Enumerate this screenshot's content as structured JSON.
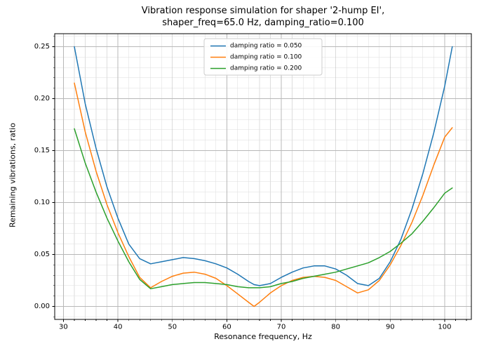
{
  "figure": {
    "title_line1": "Vibration response simulation for shaper '2-hump EI',",
    "title_line2": "shaper_freq=65.0 Hz, damping_ratio=0.100"
  },
  "chart_data": {
    "type": "line",
    "title": "Vibration response simulation for shaper '2-hump EI',\nshaper_freq=65.0 Hz, damping_ratio=0.100",
    "xlabel": "Resonance frequency, Hz",
    "ylabel": "Remaining vibrations, ratio",
    "xlim": [
      28.4,
      104.9
    ],
    "ylim": [
      -0.0125,
      0.2625
    ],
    "xticks": [
      30,
      40,
      50,
      60,
      70,
      80,
      90,
      100
    ],
    "xtick_labels": [
      "30",
      "40",
      "50",
      "60",
      "70",
      "80",
      "90",
      "100"
    ],
    "yticks": [
      0.0,
      0.05,
      0.1,
      0.15,
      0.2,
      0.25
    ],
    "ytick_labels": [
      "0.00",
      "0.05",
      "0.10",
      "0.15",
      "0.20",
      "0.25"
    ],
    "grid": "major-and-minor",
    "minor_x_step": 2,
    "minor_y_step": 0.01,
    "legend_position": "upper center",
    "x": [
      32,
      34,
      36,
      38,
      40,
      42,
      44,
      46,
      48,
      50,
      52,
      54,
      56,
      58,
      60,
      62,
      64,
      65,
      66,
      68,
      70,
      72,
      74,
      76,
      78,
      80,
      82,
      84,
      86,
      88,
      90,
      92,
      94,
      96,
      98,
      100,
      101.4
    ],
    "series": [
      {
        "name": "damping ratio = 0.050",
        "color": "#1f77b4",
        "values": [
          0.25,
          0.195,
          0.152,
          0.115,
          0.085,
          0.06,
          0.046,
          0.041,
          0.043,
          0.045,
          0.047,
          0.046,
          0.044,
          0.041,
          0.037,
          0.031,
          0.024,
          0.021,
          0.02,
          0.022,
          0.028,
          0.033,
          0.037,
          0.039,
          0.039,
          0.036,
          0.03,
          0.022,
          0.02,
          0.027,
          0.043,
          0.065,
          0.094,
          0.128,
          0.167,
          0.212,
          0.25
        ]
      },
      {
        "name": "damping ratio = 0.100",
        "color": "#ff7f0e",
        "values": [
          0.215,
          0.168,
          0.13,
          0.098,
          0.071,
          0.048,
          0.028,
          0.018,
          0.024,
          0.029,
          0.032,
          0.033,
          0.031,
          0.027,
          0.02,
          0.012,
          0.004,
          0.0,
          0.004,
          0.013,
          0.02,
          0.025,
          0.028,
          0.029,
          0.028,
          0.025,
          0.019,
          0.013,
          0.016,
          0.025,
          0.04,
          0.059,
          0.081,
          0.107,
          0.136,
          0.163,
          0.172
        ]
      },
      {
        "name": "damping ratio = 0.200",
        "color": "#2ca02c",
        "values": [
          0.171,
          0.138,
          0.11,
          0.085,
          0.063,
          0.043,
          0.026,
          0.017,
          0.019,
          0.021,
          0.022,
          0.023,
          0.023,
          0.022,
          0.021,
          0.019,
          0.018,
          0.018,
          0.018,
          0.019,
          0.022,
          0.024,
          0.027,
          0.029,
          0.031,
          0.033,
          0.036,
          0.039,
          0.042,
          0.047,
          0.053,
          0.061,
          0.07,
          0.082,
          0.095,
          0.109,
          0.114
        ]
      }
    ]
  },
  "style": {
    "spine_color": "#000000",
    "grid_major_color": "#b8b8b8",
    "grid_minor_color": "#dddddd",
    "legend_border_color": "#cccccc",
    "legend_bg_color": "#ffffff"
  }
}
